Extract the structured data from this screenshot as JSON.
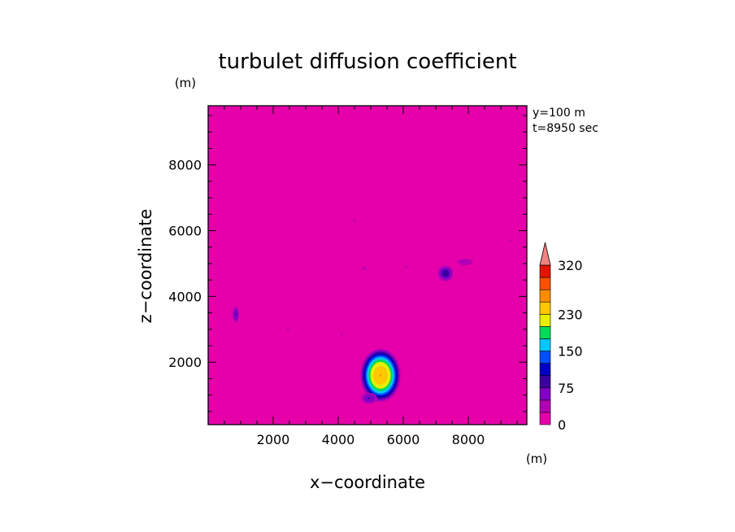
{
  "chart_data": {
    "type": "heatmap",
    "title": "turbulet diffusion coefficient",
    "xlabel": "x−coordinate",
    "ylabel": "z−coordinate",
    "x_unit": "(m)",
    "y_unit": "(m)",
    "annotations": [
      "y=100 m",
      "t=8950 sec"
    ],
    "xlim": [
      0,
      9800
    ],
    "ylim": [
      100,
      9800
    ],
    "x_ticks": [
      2000,
      4000,
      6000,
      8000
    ],
    "y_ticks": [
      2000,
      4000,
      6000,
      8000
    ],
    "x_tick_labels": [
      "2000",
      "4000",
      "6000",
      "8000"
    ],
    "y_tick_labels": [
      "2000",
      "4000",
      "6000",
      "8000"
    ],
    "background_value": 0,
    "colorbar": {
      "levels": [
        0,
        25,
        50,
        75,
        100,
        125,
        150,
        175,
        200,
        230,
        260,
        290,
        320
      ],
      "colors": [
        "#e600aa",
        "#b400b4",
        "#8200c8",
        "#3c00a0",
        "#0000c8",
        "#0050ff",
        "#00c8ff",
        "#00dc5a",
        "#e6f000",
        "#ffc800",
        "#ff8c00",
        "#ff5000",
        "#e61400"
      ],
      "extend_color": "#f08282",
      "tick_labels": [
        "0",
        "75",
        "150",
        "230",
        "320"
      ],
      "tick_values": [
        0,
        75,
        150,
        230,
        320
      ]
    },
    "features": [
      {
        "x": 5300,
        "z": 1600,
        "rx": 650,
        "rz": 850,
        "peak": 260
      },
      {
        "x": 7300,
        "z": 4700,
        "rx": 280,
        "rz": 280,
        "peak": 90
      },
      {
        "x": 7900,
        "z": 5050,
        "rx": 450,
        "rz": 180,
        "peak": 35
      },
      {
        "x": 850,
        "z": 3450,
        "rx": 120,
        "rz": 300,
        "peak": 75
      },
      {
        "x": 4950,
        "z": 900,
        "rx": 300,
        "rz": 200,
        "peak": 75
      },
      {
        "x": 4800,
        "z": 4850,
        "rx": 150,
        "rz": 120,
        "peak": 30
      },
      {
        "x": 4500,
        "z": 6300,
        "rx": 90,
        "rz": 90,
        "peak": 30
      },
      {
        "x": 2450,
        "z": 3000,
        "rx": 90,
        "rz": 90,
        "peak": 30
      },
      {
        "x": 4100,
        "z": 2850,
        "rx": 80,
        "rz": 80,
        "peak": 30
      },
      {
        "x": 6100,
        "z": 4900,
        "rx": 80,
        "rz": 80,
        "peak": 30
      },
      {
        "x": 9300,
        "z": 5700,
        "rx": 70,
        "rz": 70,
        "peak": 28
      }
    ]
  }
}
